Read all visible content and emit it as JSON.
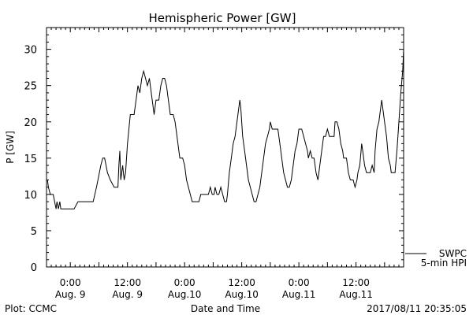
{
  "chart_data": {
    "type": "line",
    "title": "Hemispheric Power [GW]",
    "xlabel": "Date and Time",
    "ylabel": "P [GW]",
    "ylim": [
      0,
      33
    ],
    "xlim_hours": [
      -5,
      70
    ],
    "yticks": [
      0,
      5,
      10,
      15,
      20,
      25,
      30
    ],
    "xticks": [
      {
        "hour": 0,
        "time": "0:00",
        "date": "Aug. 9"
      },
      {
        "hour": 12,
        "time": "12:00",
        "date": "Aug. 9"
      },
      {
        "hour": 24,
        "time": "0:00",
        "date": "Aug.10"
      },
      {
        "hour": 36,
        "time": "12:00",
        "date": "Aug.10"
      },
      {
        "hour": 48,
        "time": "0:00",
        "date": "Aug.11"
      },
      {
        "hour": 60,
        "time": "12:00",
        "date": "Aug.11"
      }
    ],
    "legend": {
      "position": "bottom-right",
      "entries": [
        "SWPC",
        "5-min HPI"
      ]
    },
    "series": [
      {
        "color": "#000000",
        "points": [
          [
            -4.8,
            12
          ],
          [
            -4.6,
            11
          ],
          [
            -4.2,
            10
          ],
          [
            -3.6,
            10
          ],
          [
            -3.3,
            9
          ],
          [
            -3.0,
            8
          ],
          [
            -2.8,
            9
          ],
          [
            -2.5,
            8
          ],
          [
            -2.2,
            9
          ],
          [
            -2.0,
            8
          ],
          [
            -1.5,
            8
          ],
          [
            0,
            8
          ],
          [
            0.8,
            8
          ],
          [
            1.6,
            9
          ],
          [
            3,
            9
          ],
          [
            4.8,
            9
          ],
          [
            5.5,
            11
          ],
          [
            6.4,
            14
          ],
          [
            6.8,
            15
          ],
          [
            7.2,
            15
          ],
          [
            7.8,
            13
          ],
          [
            8.4,
            12
          ],
          [
            9.2,
            11
          ],
          [
            10.0,
            11
          ],
          [
            10.2,
            14
          ],
          [
            10.4,
            16
          ],
          [
            10.6,
            12
          ],
          [
            11.0,
            14
          ],
          [
            11.3,
            12
          ],
          [
            11.6,
            13
          ],
          [
            12.0,
            17
          ],
          [
            12.6,
            21
          ],
          [
            13.4,
            21
          ],
          [
            13.8,
            23
          ],
          [
            14.2,
            25
          ],
          [
            14.6,
            24
          ],
          [
            15.0,
            26
          ],
          [
            15.4,
            27
          ],
          [
            15.8,
            26
          ],
          [
            16.2,
            25
          ],
          [
            16.6,
            26
          ],
          [
            17.2,
            23
          ],
          [
            17.6,
            21
          ],
          [
            18.0,
            23
          ],
          [
            18.6,
            23
          ],
          [
            19.0,
            25
          ],
          [
            19.4,
            26
          ],
          [
            19.8,
            26
          ],
          [
            20.2,
            25
          ],
          [
            20.6,
            23
          ],
          [
            21.0,
            21
          ],
          [
            21.6,
            21
          ],
          [
            22.0,
            20
          ],
          [
            22.6,
            17
          ],
          [
            23.0,
            15
          ],
          [
            23.6,
            15
          ],
          [
            24.0,
            14
          ],
          [
            24.4,
            12
          ],
          [
            24.8,
            11
          ],
          [
            25.2,
            10
          ],
          [
            25.6,
            9
          ],
          [
            26.4,
            9
          ],
          [
            27.0,
            9
          ],
          [
            27.4,
            10
          ],
          [
            28.0,
            10
          ],
          [
            29.0,
            10
          ],
          [
            29.4,
            11
          ],
          [
            29.8,
            10
          ],
          [
            30.2,
            10
          ],
          [
            30.4,
            11
          ],
          [
            30.8,
            10
          ],
          [
            31.2,
            10
          ],
          [
            31.6,
            11
          ],
          [
            32.0,
            10
          ],
          [
            32.4,
            9
          ],
          [
            32.8,
            9
          ],
          [
            33.0,
            10
          ],
          [
            33.4,
            13
          ],
          [
            33.8,
            15
          ],
          [
            34.2,
            17
          ],
          [
            34.6,
            18
          ],
          [
            35.0,
            20
          ],
          [
            35.2,
            21
          ],
          [
            35.4,
            22
          ],
          [
            35.6,
            23
          ],
          [
            35.8,
            22
          ],
          [
            36.0,
            20
          ],
          [
            36.2,
            18
          ],
          [
            36.6,
            16
          ],
          [
            37.0,
            14
          ],
          [
            37.4,
            12
          ],
          [
            37.8,
            11
          ],
          [
            38.2,
            10
          ],
          [
            38.6,
            9
          ],
          [
            39.0,
            9
          ],
          [
            39.4,
            10
          ],
          [
            39.8,
            11
          ],
          [
            40.2,
            13
          ],
          [
            40.6,
            15
          ],
          [
            41.0,
            17
          ],
          [
            41.4,
            18
          ],
          [
            41.8,
            19
          ],
          [
            42.0,
            20
          ],
          [
            42.4,
            19
          ],
          [
            43.0,
            19
          ],
          [
            43.6,
            19
          ],
          [
            44.0,
            17
          ],
          [
            44.4,
            15
          ],
          [
            44.8,
            13
          ],
          [
            45.2,
            12
          ],
          [
            45.6,
            11
          ],
          [
            46.0,
            11
          ],
          [
            46.4,
            12
          ],
          [
            46.8,
            14
          ],
          [
            47.2,
            16
          ],
          [
            47.6,
            17
          ],
          [
            48.0,
            19
          ],
          [
            48.6,
            19
          ],
          [
            49.0,
            18
          ],
          [
            49.4,
            17
          ],
          [
            49.8,
            16
          ],
          [
            50.0,
            15
          ],
          [
            50.4,
            16
          ],
          [
            50.8,
            15
          ],
          [
            51.2,
            15
          ],
          [
            51.6,
            13
          ],
          [
            52.0,
            12
          ],
          [
            52.4,
            14
          ],
          [
            52.8,
            16
          ],
          [
            53.2,
            18
          ],
          [
            53.6,
            18
          ],
          [
            54.0,
            19
          ],
          [
            54.4,
            18
          ],
          [
            55.0,
            18
          ],
          [
            55.4,
            18
          ],
          [
            55.6,
            20
          ],
          [
            56.0,
            20
          ],
          [
            56.4,
            19
          ],
          [
            56.8,
            17
          ],
          [
            57.2,
            16
          ],
          [
            57.4,
            15
          ],
          [
            58.0,
            15
          ],
          [
            58.4,
            13
          ],
          [
            58.8,
            12
          ],
          [
            59.4,
            12
          ],
          [
            59.8,
            11
          ],
          [
            60.2,
            12
          ],
          [
            60.4,
            13
          ],
          [
            60.8,
            14
          ],
          [
            61.2,
            17
          ],
          [
            61.4,
            16
          ],
          [
            61.8,
            14
          ],
          [
            62.2,
            13
          ],
          [
            63.0,
            13
          ],
          [
            63.4,
            14
          ],
          [
            63.8,
            13
          ],
          [
            64.0,
            16
          ],
          [
            64.4,
            19
          ],
          [
            64.8,
            20
          ],
          [
            65.0,
            21
          ],
          [
            65.4,
            23
          ],
          [
            65.8,
            21
          ],
          [
            66.0,
            20
          ],
          [
            66.4,
            18
          ],
          [
            66.8,
            15
          ],
          [
            67.2,
            14
          ],
          [
            67.4,
            13
          ],
          [
            67.8,
            13
          ],
          [
            68.2,
            13
          ],
          [
            68.6,
            16
          ],
          [
            69.0,
            20
          ],
          [
            69.4,
            24
          ],
          [
            69.8,
            27
          ],
          [
            70.0,
            30
          ]
        ]
      }
    ]
  },
  "footer": {
    "plot_credit": "Plot: CCMC",
    "timestamp": "2017/08/11 20:35:05"
  }
}
